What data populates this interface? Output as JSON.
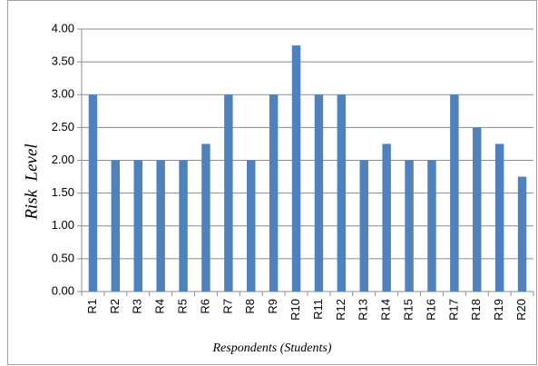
{
  "chart_data": {
    "type": "bar",
    "y_label": "Risk  Level",
    "x_label": "Respondents (Students)",
    "categories": [
      "R1",
      "R2",
      "R3",
      "R4",
      "R5",
      "R6",
      "R7",
      "R8",
      "R9",
      "R10",
      "R11",
      "R12",
      "R13",
      "R14",
      "R15",
      "R16",
      "R17",
      "R18",
      "R19",
      "R20"
    ],
    "values": [
      3,
      2,
      2,
      2,
      2,
      2.25,
      3,
      2,
      3,
      3.75,
      3,
      3,
      2,
      2.25,
      2,
      2,
      3,
      2.5,
      2.25,
      1.75
    ],
    "color": "#4f81bd",
    "ylim": [
      0,
      4
    ],
    "yticks": [
      {
        "value": 0,
        "label": "0.00"
      },
      {
        "value": 0.5,
        "label": "0.50"
      },
      {
        "value": 1,
        "label": "1.00"
      },
      {
        "value": 1.5,
        "label": "1.50"
      },
      {
        "value": 2,
        "label": "2.00"
      },
      {
        "value": 2.5,
        "label": "2.50"
      },
      {
        "value": 3,
        "label": "3.00"
      },
      {
        "value": 3.5,
        "label": "3.50"
      },
      {
        "value": 4,
        "label": "4.00"
      }
    ],
    "grid": true
  }
}
